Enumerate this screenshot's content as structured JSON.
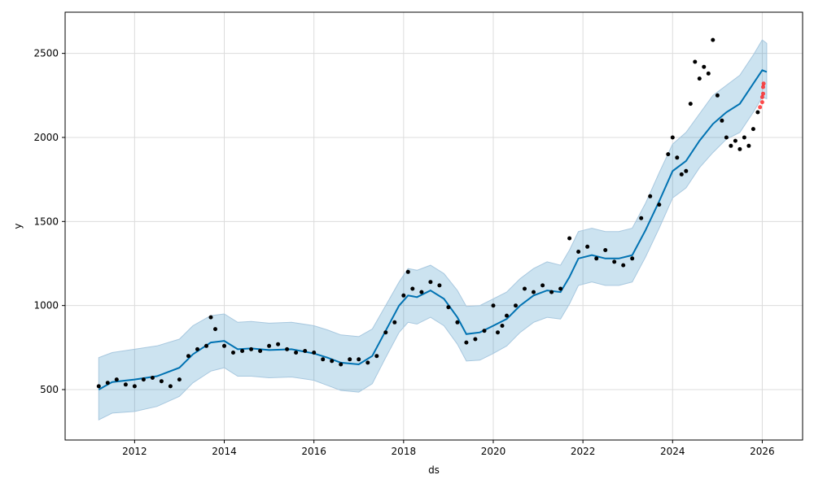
{
  "chart_data": {
    "type": "line",
    "title": "",
    "xlabel": "ds",
    "ylabel": "y",
    "xlim": [
      2010.45,
      2026.9
    ],
    "ylim": [
      200,
      2745
    ],
    "grid": true,
    "x_ticks": [
      2012,
      2014,
      2016,
      2018,
      2020,
      2022,
      2024,
      2026
    ],
    "x_tick_labels": [
      "2012",
      "2014",
      "2016",
      "2018",
      "2020",
      "2022",
      "2024",
      "2026"
    ],
    "y_ticks": [
      500,
      1000,
      1500,
      2000,
      2500
    ],
    "y_tick_labels": [
      "500",
      "1000",
      "1500",
      "2000",
      "2500"
    ],
    "colors": {
      "actual": "#000000",
      "forecast_line": "#0072B2",
      "band_fill": "#0072B2",
      "band_edge": "#a8c8df",
      "recent_points": "#ff2020",
      "grid": "#dcdcdc"
    },
    "series": [
      {
        "kind": "forecast",
        "x": [
          2011.2,
          2011.5,
          2012.0,
          2012.5,
          2013.0,
          2013.3,
          2013.7,
          2014.0,
          2014.3,
          2014.6,
          2015.0,
          2015.5,
          2016.0,
          2016.3,
          2016.6,
          2017.0,
          2017.3,
          2017.6,
          2017.9,
          2018.1,
          2018.3,
          2018.6,
          2018.9,
          2019.2,
          2019.4,
          2019.7,
          2020.0,
          2020.3,
          2020.6,
          2020.9,
          2021.2,
          2021.5,
          2021.7,
          2021.9,
          2022.2,
          2022.5,
          2022.8,
          2023.1,
          2023.4,
          2023.7,
          2024.0,
          2024.3,
          2024.6,
          2024.9,
          2025.2,
          2025.5,
          2025.8,
          2026.0,
          2026.1
        ],
        "y": [
          500,
          545,
          560,
          580,
          630,
          710,
          780,
          790,
          740,
          745,
          735,
          740,
          715,
          690,
          660,
          650,
          700,
          850,
          1000,
          1060,
          1050,
          1090,
          1040,
          930,
          830,
          840,
          880,
          920,
          1000,
          1060,
          1090,
          1080,
          1170,
          1280,
          1300,
          1280,
          1280,
          1300,
          1450,
          1620,
          1800,
          1860,
          1980,
          2080,
          2150,
          2200,
          2320,
          2400,
          2390
        ]
      },
      {
        "kind": "upper_bound",
        "x": [
          2011.2,
          2011.5,
          2012.0,
          2012.5,
          2013.0,
          2013.3,
          2013.7,
          2014.0,
          2014.3,
          2014.6,
          2015.0,
          2015.5,
          2016.0,
          2016.3,
          2016.6,
          2017.0,
          2017.3,
          2017.6,
          2017.9,
          2018.1,
          2018.3,
          2018.6,
          2018.9,
          2019.2,
          2019.4,
          2019.7,
          2020.0,
          2020.3,
          2020.6,
          2020.9,
          2021.2,
          2021.5,
          2021.7,
          2021.9,
          2022.2,
          2022.5,
          2022.8,
          2023.1,
          2023.4,
          2023.7,
          2024.0,
          2024.3,
          2024.6,
          2024.9,
          2025.2,
          2025.5,
          2025.8,
          2026.0,
          2026.1
        ],
        "y": [
          690,
          720,
          740,
          760,
          800,
          880,
          940,
          950,
          900,
          905,
          895,
          900,
          880,
          855,
          825,
          815,
          860,
          1000,
          1140,
          1220,
          1210,
          1240,
          1190,
          1090,
          995,
          1000,
          1040,
          1080,
          1160,
          1220,
          1260,
          1240,
          1330,
          1440,
          1460,
          1440,
          1440,
          1460,
          1610,
          1790,
          1960,
          2030,
          2140,
          2250,
          2310,
          2370,
          2490,
          2580,
          2560
        ]
      },
      {
        "kind": "lower_bound",
        "x": [
          2011.2,
          2011.5,
          2012.0,
          2012.5,
          2013.0,
          2013.3,
          2013.7,
          2014.0,
          2014.3,
          2014.6,
          2015.0,
          2015.5,
          2016.0,
          2016.3,
          2016.6,
          2017.0,
          2017.3,
          2017.6,
          2017.9,
          2018.1,
          2018.3,
          2018.6,
          2018.9,
          2019.2,
          2019.4,
          2019.7,
          2020.0,
          2020.3,
          2020.6,
          2020.9,
          2021.2,
          2021.5,
          2021.7,
          2021.9,
          2022.2,
          2022.5,
          2022.8,
          2023.1,
          2023.4,
          2023.7,
          2024.0,
          2024.3,
          2024.6,
          2024.9,
          2025.2,
          2025.5,
          2025.8,
          2026.0,
          2026.1
        ],
        "y": [
          320,
          360,
          370,
          400,
          460,
          540,
          610,
          630,
          580,
          580,
          570,
          575,
          555,
          525,
          495,
          485,
          535,
          690,
          840,
          900,
          890,
          930,
          880,
          770,
          670,
          675,
          715,
          760,
          840,
          900,
          930,
          920,
          1010,
          1120,
          1140,
          1120,
          1120,
          1140,
          1290,
          1460,
          1640,
          1700,
          1820,
          1910,
          1990,
          2030,
          2150,
          2240,
          2230
        ]
      },
      {
        "kind": "actual",
        "x": [
          2011.2,
          2011.4,
          2011.6,
          2011.8,
          2012.0,
          2012.2,
          2012.4,
          2012.6,
          2012.8,
          2013.0,
          2013.2,
          2013.4,
          2013.6,
          2013.7,
          2013.8,
          2014.0,
          2014.2,
          2014.4,
          2014.6,
          2014.8,
          2015.0,
          2015.2,
          2015.4,
          2015.6,
          2015.8,
          2016.0,
          2016.2,
          2016.4,
          2016.6,
          2016.8,
          2017.0,
          2017.2,
          2017.4,
          2017.6,
          2017.8,
          2018.0,
          2018.1,
          2018.2,
          2018.4,
          2018.6,
          2018.8,
          2019.0,
          2019.2,
          2019.4,
          2019.6,
          2019.8,
          2020.0,
          2020.1,
          2020.2,
          2020.3,
          2020.5,
          2020.7,
          2020.9,
          2021.1,
          2021.3,
          2021.5,
          2021.7,
          2021.9,
          2022.1,
          2022.3,
          2022.5,
          2022.7,
          2022.9,
          2023.1,
          2023.3,
          2023.5,
          2023.7,
          2023.9,
          2024.0,
          2024.1,
          2024.2,
          2024.3,
          2024.4,
          2024.5,
          2024.6,
          2024.7,
          2024.8,
          2024.9,
          2025.0,
          2025.1,
          2025.2,
          2025.3,
          2025.4,
          2025.5,
          2025.6,
          2025.7,
          2025.8,
          2025.9
        ],
        "y": [
          520,
          540,
          560,
          530,
          520,
          560,
          570,
          550,
          520,
          560,
          700,
          740,
          760,
          930,
          860,
          760,
          720,
          730,
          740,
          730,
          760,
          770,
          740,
          720,
          730,
          720,
          680,
          670,
          650,
          680,
          680,
          660,
          700,
          840,
          900,
          1060,
          1200,
          1100,
          1080,
          1140,
          1120,
          990,
          900,
          780,
          800,
          850,
          1000,
          840,
          880,
          940,
          1000,
          1100,
          1080,
          1120,
          1080,
          1100,
          1400,
          1320,
          1350,
          1280,
          1330,
          1260,
          1240,
          1280,
          1520,
          1650,
          1600,
          1900,
          2000,
          1880,
          1780,
          1800,
          2200,
          2450,
          2350,
          2420,
          2380,
          2580,
          2250,
          2100,
          2000,
          1950,
          1980,
          1930,
          2000,
          1950,
          2050,
          2150
        ]
      },
      {
        "kind": "recent",
        "x": [
          2025.95,
          2026.0,
          2026.0,
          2026.02,
          2026.02,
          2026.03
        ],
        "y": [
          2180,
          2210,
          2240,
          2260,
          2300,
          2320
        ]
      }
    ]
  }
}
